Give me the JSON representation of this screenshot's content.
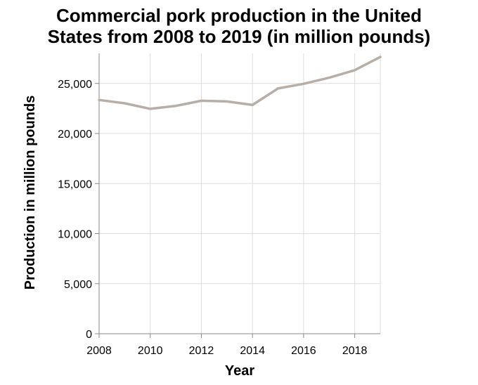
{
  "chart_data": {
    "type": "line",
    "title_lines": [
      "Commercial pork production in the United",
      "States from 2008 to 2019 (in million pounds)"
    ],
    "xlabel": "Year",
    "ylabel": "Production in million pounds",
    "x": [
      2008,
      2009,
      2010,
      2011,
      2012,
      2013,
      2014,
      2015,
      2016,
      2017,
      2018,
      2019
    ],
    "series": [
      {
        "values": [
          23350,
          23020,
          22460,
          22760,
          23270,
          23200,
          22850,
          24500,
          24960,
          25570,
          26320,
          27640
        ]
      }
    ],
    "xlim": [
      2008,
      2019
    ],
    "ylim": [
      0,
      28000
    ],
    "x_ticks": [
      2008,
      2010,
      2012,
      2014,
      2016,
      2018
    ],
    "x_tick_labels": [
      "2008",
      "2010",
      "2012",
      "2014",
      "2016",
      "2018"
    ],
    "y_ticks": [
      0,
      5000,
      10000,
      15000,
      20000,
      25000
    ],
    "y_tick_labels": [
      "0",
      "5,000",
      "10,000",
      "15,000",
      "20,000",
      "25,000"
    ],
    "grid": true,
    "line_color": "#b8aea8"
  }
}
